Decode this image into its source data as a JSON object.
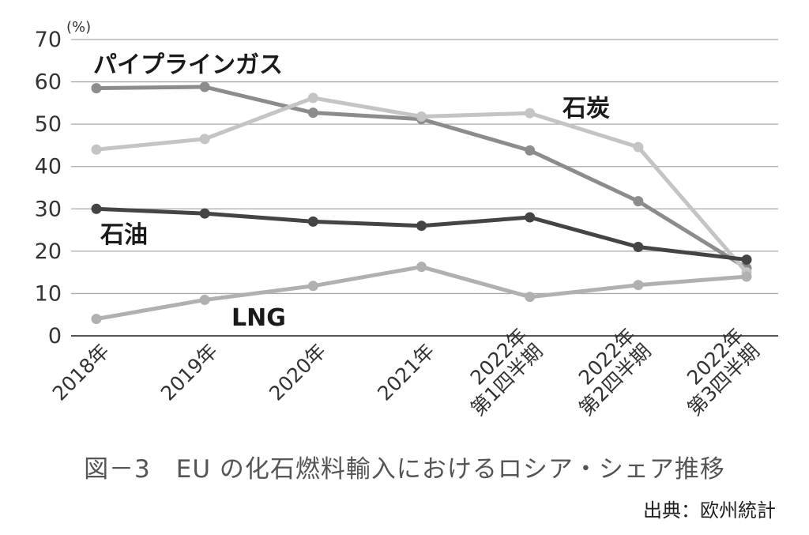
{
  "chart_data": {
    "type": "line",
    "title": "",
    "ylabel": "",
    "yunit": "(%)",
    "ylim": [
      0,
      70
    ],
    "yticks": [
      0,
      10,
      20,
      30,
      40,
      50,
      60,
      70
    ],
    "grid": true,
    "categories": [
      [
        "2018年"
      ],
      [
        "2019年"
      ],
      [
        "2020年"
      ],
      [
        "2021年"
      ],
      [
        "2022年",
        "第1四半期"
      ],
      [
        "2022年",
        "第2四半期"
      ],
      [
        "2022年",
        "第3四半期"
      ]
    ],
    "series": [
      {
        "name": "パイプラインガス",
        "color": "#8c8c8c",
        "values": [
          58.5,
          58.8,
          52.7,
          51.2,
          43.8,
          31.8,
          16.0
        ]
      },
      {
        "name": "石炭",
        "color": "#c4c4c4",
        "values": [
          44.0,
          46.5,
          56.2,
          51.8,
          52.6,
          44.6,
          15.0
        ]
      },
      {
        "name": "石油",
        "color": "#444444",
        "values": [
          30.0,
          28.9,
          27.0,
          26.0,
          28.0,
          21.0,
          18.0
        ]
      },
      {
        "name": "LNG",
        "color": "#b0b0b0",
        "values": [
          4.0,
          8.5,
          11.8,
          16.3,
          9.2,
          12.0,
          14.0
        ]
      }
    ]
  },
  "caption": "図－3　EU の化石燃料輸入におけるロシア・シェア推移",
  "source": "出典：欧州統計"
}
